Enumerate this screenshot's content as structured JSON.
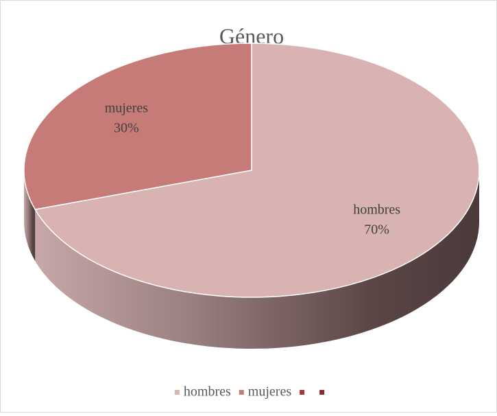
{
  "chart_data": {
    "type": "pie",
    "title": "Género",
    "categories": [
      "hombres",
      "mujeres",
      null,
      null
    ],
    "values": [
      70,
      30,
      0,
      0
    ],
    "value_labels": [
      "70%",
      "30%",
      null,
      null
    ],
    "colors": [
      "#d9b2b2",
      "#c67b79",
      "#a8373a",
      "#8c2b2d"
    ],
    "legend": "bottom"
  }
}
